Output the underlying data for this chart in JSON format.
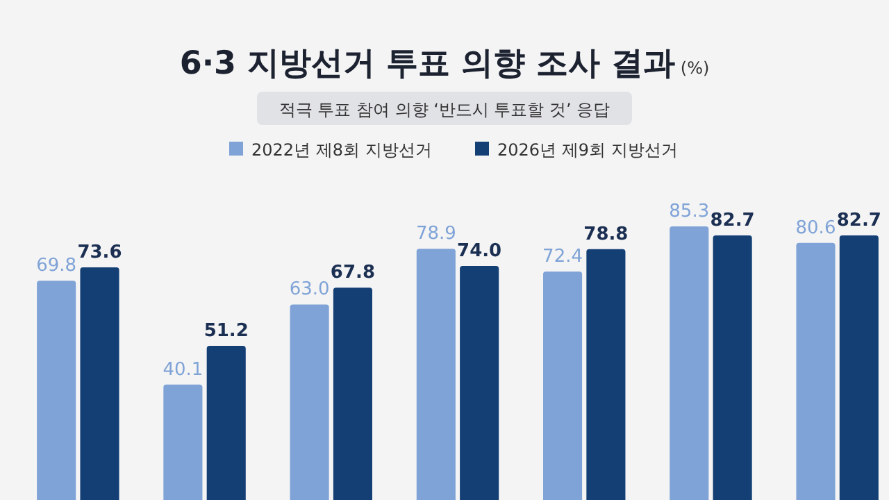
{
  "chart_data": {
    "type": "bar",
    "title": "6·3 지방선거 투표 의향 조사 결과 (%)",
    "subtitle": "적극 투표 참여 의향 ‘반드시 투표할 것’ 응답",
    "categories": [
      null,
      null,
      null,
      null,
      null,
      null,
      null
    ],
    "series": [
      {
        "name": "2022년 제8회 지방선거",
        "color": "#7fa3d6",
        "values": [
          69.8,
          40.1,
          63.0,
          78.9,
          72.4,
          85.3,
          80.6
        ],
        "value_labels": [
          "69.8",
          "40.1",
          "63.0",
          "78.9",
          "72.4",
          "85.3",
          "80.6"
        ]
      },
      {
        "name": "2026년 제9회 지방선거",
        "color": "#133f75",
        "values": [
          73.6,
          51.2,
          67.8,
          74.0,
          78.8,
          82.7,
          82.7
        ],
        "value_labels": [
          "73.6",
          "51.2",
          "67.8",
          "74.0",
          "78.8",
          "82.7",
          "82.7"
        ]
      }
    ],
    "legend": "top"
  }
}
